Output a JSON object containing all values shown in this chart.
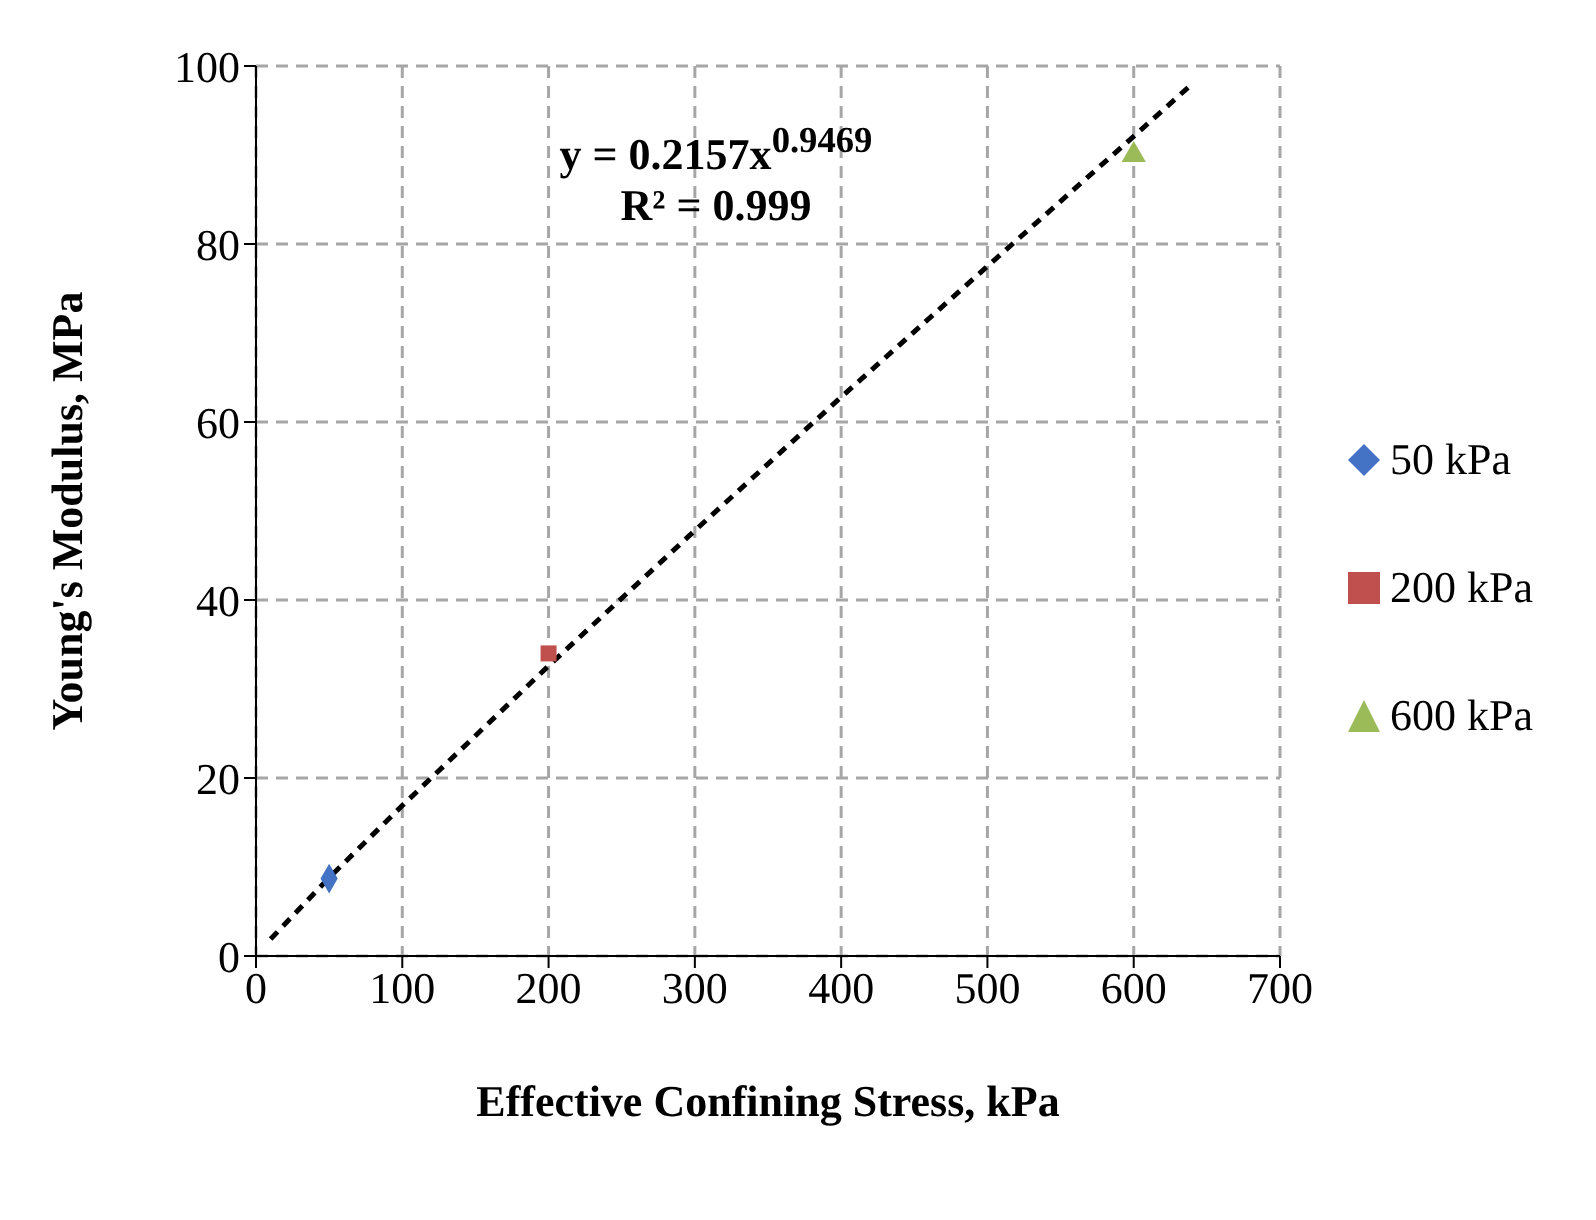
{
  "chart_data": {
    "type": "scatter",
    "xlabel": "Effective Confining Stress, kPa",
    "ylabel": "Young's Modulus, MPa",
    "annotations": [
      "y = 0.2157x$^{0.9469}$",
      "R² = 0.999"
    ],
    "series": [
      {
        "name": "50 kPa",
        "color": "#4472c4",
        "marker": "diamond",
        "x": [
          50
        ],
        "values": [
          8.7
        ]
      },
      {
        "name": "200 kPa",
        "color": "#c0504d",
        "marker": "square",
        "x": [
          200
        ],
        "values": [
          34
        ]
      },
      {
        "name": "600 kPa",
        "color": "#9bbb59",
        "marker": "triangle",
        "x": [
          600
        ],
        "values": [
          90
        ]
      },
      {
        "type": "line",
        "color": "#000000",
        "line_style": "dashed",
        "marker": "none",
        "x": [
          10,
          50,
          100,
          200,
          300,
          400,
          500,
          600,
          640
        ],
        "values": [
          1.9,
          8.8,
          16.9,
          32.6,
          47.8,
          62.8,
          77.5,
          92.1,
          98
        ]
      }
    ],
    "xlim": [
      0,
      700
    ],
    "xticks": [
      0,
      100,
      200,
      300,
      400,
      500,
      600,
      700
    ],
    "ylim": [
      0,
      100
    ],
    "yticks": [
      0,
      20,
      40,
      60,
      80,
      100
    ],
    "grid": true,
    "legend": "right"
  }
}
